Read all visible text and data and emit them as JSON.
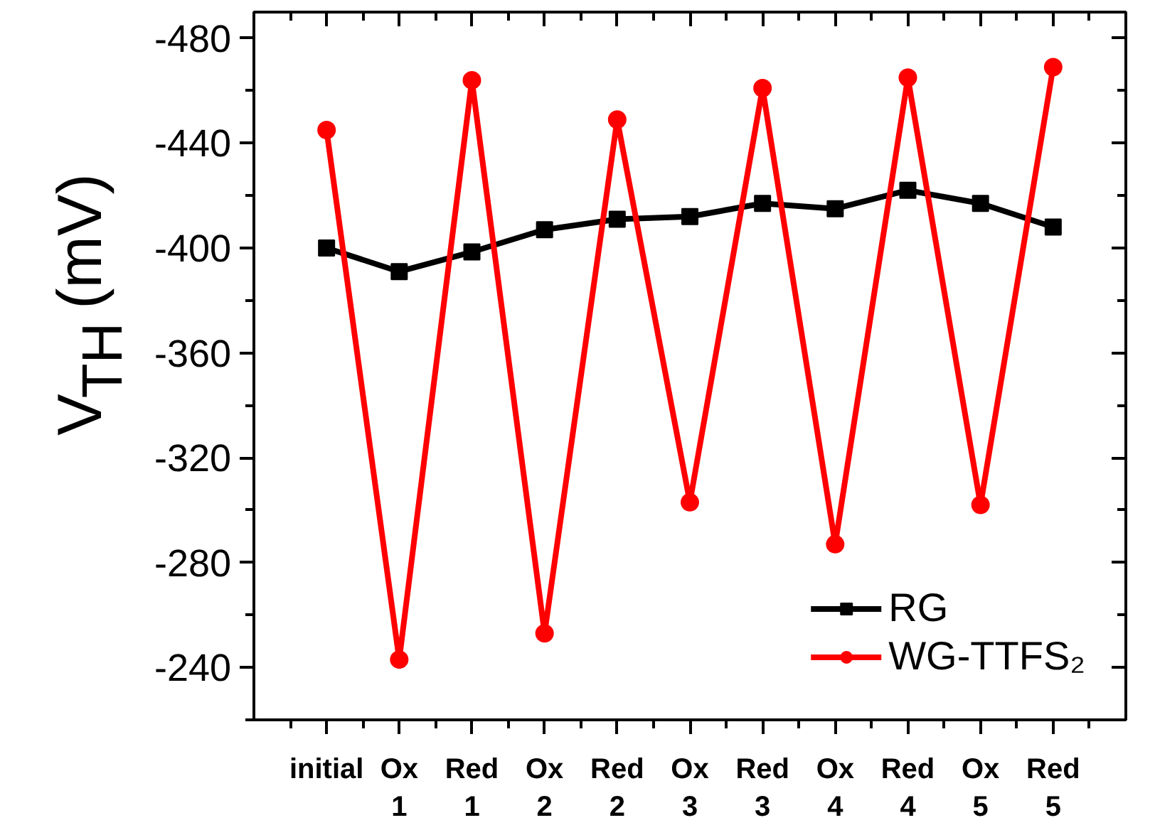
{
  "chart_data": {
    "type": "line",
    "ylabel": "V$_{TH}$ (mV)",
    "categories": [
      "initial",
      "Ox\n1",
      "Red\n1",
      "Ox\n2",
      "Red\n2",
      "Ox\n3",
      "Red\n3",
      "Ox\n4",
      "Red\n4",
      "Ox\n5",
      "Red\n5"
    ],
    "series": [
      {
        "name": "RG",
        "color": "#000000",
        "marker": "square",
        "values": [
          -400,
          -391,
          -398.5,
          -407,
          -411,
          -412,
          -417,
          -415,
          -422,
          -417,
          -408
        ]
      },
      {
        "name": "WG-TTFS₂",
        "color": "#ff0000",
        "marker": "circle",
        "values": [
          -445,
          -243,
          -464,
          -253,
          -449,
          -303,
          -461,
          -287,
          -465,
          -302,
          -469
        ]
      }
    ],
    "ylim": [
      -220,
      -490
    ],
    "yticks": [
      -480,
      -440,
      -400,
      -360,
      -320,
      -280,
      -240
    ],
    "grid": false,
    "legend": "bottom right",
    "line_style": "solid"
  }
}
